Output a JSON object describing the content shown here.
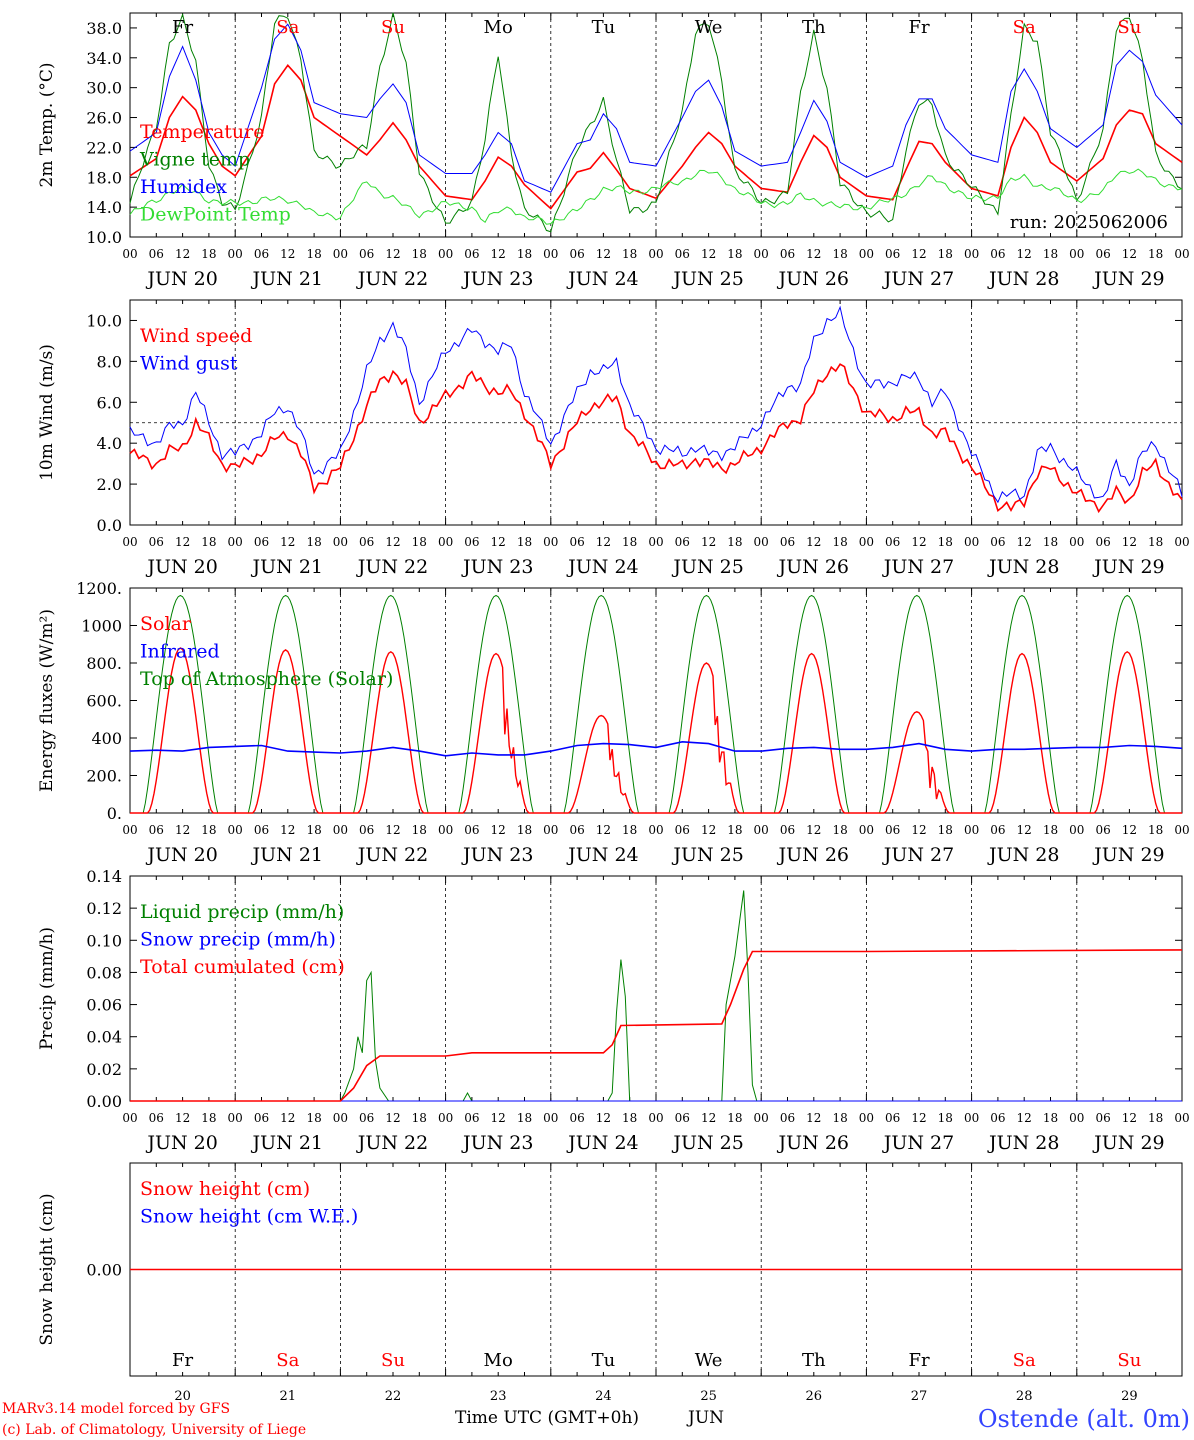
{
  "run_label": "run: 2025062006",
  "days": [
    "Fr",
    "Sa",
    "Su",
    "Mo",
    "Tu",
    "We",
    "Th",
    "Fr",
    "Sa",
    "Su"
  ],
  "day_colors": [
    "#000000",
    "#ff0000",
    "#ff0000",
    "#000000",
    "#000000",
    "#000000",
    "#000000",
    "#000000",
    "#ff0000",
    "#ff0000"
  ],
  "dates": [
    "JUN 20",
    "JUN 21",
    "JUN 22",
    "JUN 23",
    "JUN 24",
    "JUN 25",
    "JUN 26",
    "JUN 27",
    "JUN 28",
    "JUN 29"
  ],
  "date_numbers": [
    "20",
    "21",
    "22",
    "23",
    "24",
    "25",
    "26",
    "27",
    "28",
    "29"
  ],
  "hour_ticks": [
    "00",
    "06",
    "12",
    "18"
  ],
  "footer": {
    "credit1": "MARv3.14 model forced by GFS",
    "credit2": "(c) Lab. of Climatology, University of Liege",
    "xlabel": "Time UTC (GMT+0h)",
    "month": "JUN",
    "station": "Ostende (alt. 0m)"
  },
  "colors": {
    "red": "#ff0000",
    "green": "#008000",
    "blue": "#0000ff",
    "lime": "#33dd33",
    "station": "#3344ff"
  },
  "chart_data": [
    {
      "type": "line",
      "ylabel": "2m Temp. (°C)",
      "ylim": [
        10.0,
        40.0
      ],
      "yticks": [
        "10.0",
        "14.0",
        "18.0",
        "22.0",
        "26.0",
        "30.0",
        "34.0",
        "38.0"
      ],
      "x_hours": [
        0,
        6,
        9,
        12,
        15,
        18,
        21,
        24,
        30,
        33,
        36,
        39,
        42,
        48,
        54,
        57,
        60,
        63,
        66,
        72,
        78,
        81,
        84,
        87,
        90,
        96,
        102,
        105,
        108,
        111,
        114,
        120,
        126,
        129,
        132,
        135,
        138,
        144,
        150,
        153,
        156,
        159,
        162,
        168,
        174,
        177,
        180,
        183,
        186,
        192,
        198,
        201,
        204,
        207,
        210,
        216,
        222,
        225,
        228,
        231,
        234,
        240
      ],
      "series": [
        {
          "name": "Temperature",
          "color": "red",
          "values": [
            18.2,
            20.5,
            26.0,
            28.8,
            27.0,
            22.5,
            19.5,
            18.2,
            23.5,
            30.5,
            33.0,
            31.0,
            26.0,
            23.5,
            21.0,
            23.0,
            25.3,
            23.0,
            19.5,
            15.5,
            15.0,
            17.5,
            20.7,
            19.5,
            17.0,
            13.8,
            18.7,
            19.2,
            21.3,
            19.0,
            16.5,
            15.2,
            19.5,
            22.0,
            24.0,
            22.5,
            19.5,
            16.5,
            16.0,
            20.0,
            23.6,
            22.0,
            18.0,
            15.5,
            15.0,
            19.0,
            22.8,
            22.5,
            20.0,
            16.5,
            15.5,
            22.0,
            26.0,
            24.0,
            20.0,
            17.5,
            20.5,
            25.0,
            27.0,
            26.5,
            22.5,
            20.0
          ]
        },
        {
          "name": "Vigne temp",
          "color": "green",
          "values": [
            14.5,
            25.0,
            36.0,
            39.0,
            33.5,
            20.0,
            14.5,
            13.5,
            26.0,
            38.5,
            40.0,
            34.0,
            21.0,
            19.8,
            22.0,
            33.0,
            39.5,
            33.0,
            19.0,
            11.5,
            15.0,
            23.0,
            34.5,
            21.5,
            13.5,
            11.0,
            21.5,
            25.0,
            28.5,
            20.0,
            13.5,
            14.5,
            27.0,
            37.5,
            38.5,
            31.0,
            19.0,
            14.5,
            16.0,
            29.0,
            37.5,
            30.0,
            17.0,
            13.5,
            12.0,
            22.0,
            28.0,
            27.5,
            21.0,
            16.5,
            13.5,
            26.0,
            38.0,
            36.5,
            24.0,
            15.0,
            24.0,
            38.0,
            40.0,
            33.5,
            21.0,
            16.5
          ]
        },
        {
          "name": "Humidex",
          "color": "blue",
          "values": [
            21.5,
            24.0,
            31.5,
            35.5,
            31.0,
            24.0,
            21.0,
            19.5,
            30.0,
            36.5,
            38.5,
            35.0,
            28.0,
            26.5,
            26.0,
            28.5,
            30.5,
            28.0,
            21.0,
            18.5,
            18.5,
            21.0,
            24.0,
            22.5,
            17.5,
            16.0,
            22.5,
            23.0,
            26.5,
            24.5,
            20.0,
            19.5,
            26.0,
            29.5,
            31.0,
            27.5,
            21.5,
            19.5,
            20.0,
            24.0,
            28.3,
            25.5,
            20.0,
            18.0,
            19.5,
            25.0,
            28.5,
            28.5,
            24.5,
            21.0,
            20.0,
            29.5,
            32.5,
            29.5,
            24.5,
            22.0,
            25.0,
            33.0,
            35.0,
            33.5,
            29.0,
            25.0
          ]
        },
        {
          "name": "DewPoint Temp",
          "color": "lime",
          "values": [
            13.0,
            15.0,
            16.0,
            16.5,
            16.0,
            15.0,
            14.5,
            14.5,
            15.0,
            15.0,
            15.0,
            14.5,
            13.0,
            12.8,
            17.5,
            16.0,
            15.2,
            14.0,
            13.0,
            14.5,
            14.0,
            12.0,
            13.5,
            14.0,
            12.5,
            12.0,
            13.5,
            15.0,
            16.5,
            16.5,
            16.0,
            16.5,
            17.5,
            18.5,
            18.7,
            18.0,
            16.5,
            14.5,
            14.5,
            15.5,
            15.0,
            14.5,
            14.0,
            14.0,
            15.0,
            16.0,
            17.0,
            18.0,
            17.0,
            15.0,
            15.5,
            17.5,
            18.0,
            17.0,
            16.5,
            15.0,
            16.0,
            18.5,
            19.0,
            18.5,
            17.5,
            16.5
          ]
        }
      ]
    },
    {
      "type": "line",
      "ylabel": "10m Wind (m/s)",
      "ylim": [
        0.0,
        11.0
      ],
      "yticks": [
        "0.0",
        "2.0",
        "4.0",
        "6.0",
        "8.0",
        "10.0"
      ],
      "threshold": 5.0,
      "x_hours": [
        0,
        6,
        9,
        12,
        15,
        18,
        21,
        24,
        30,
        33,
        36,
        39,
        42,
        48,
        54,
        57,
        60,
        63,
        66,
        72,
        78,
        81,
        84,
        87,
        90,
        96,
        102,
        105,
        108,
        111,
        114,
        120,
        126,
        129,
        132,
        135,
        138,
        144,
        150,
        153,
        156,
        159,
        162,
        168,
        174,
        177,
        180,
        183,
        186,
        192,
        198,
        201,
        204,
        207,
        210,
        216,
        222,
        225,
        228,
        231,
        234,
        240
      ],
      "series": [
        {
          "name": "Wind speed",
          "color": "red",
          "values": [
            3.5,
            3.0,
            3.6,
            3.8,
            5.0,
            4.2,
            3.0,
            2.8,
            3.5,
            4.2,
            4.5,
            3.5,
            1.8,
            2.8,
            5.8,
            7.0,
            7.5,
            6.8,
            5.0,
            6.3,
            7.3,
            6.8,
            6.5,
            6.5,
            5.5,
            3.0,
            5.0,
            5.8,
            6.0,
            6.2,
            4.5,
            3.0,
            2.9,
            3.2,
            3.0,
            2.8,
            3.0,
            3.8,
            5.0,
            5.2,
            6.5,
            7.5,
            7.8,
            5.5,
            5.2,
            5.5,
            5.5,
            4.5,
            4.5,
            2.8,
            1.0,
            0.8,
            1.2,
            2.5,
            2.8,
            1.5,
            0.9,
            1.6,
            1.2,
            2.5,
            3.0,
            1.0
          ]
        },
        {
          "name": "Wind gust",
          "color": "blue",
          "values": [
            4.5,
            4.0,
            4.8,
            5.0,
            6.5,
            5.0,
            3.5,
            3.5,
            4.5,
            5.5,
            5.8,
            4.5,
            2.5,
            3.5,
            7.5,
            9.0,
            9.8,
            8.5,
            6.0,
            8.5,
            9.5,
            9.0,
            8.5,
            8.8,
            6.5,
            4.0,
            6.5,
            7.5,
            7.5,
            8.0,
            5.8,
            3.8,
            3.5,
            3.8,
            3.5,
            3.5,
            3.8,
            5.0,
            6.8,
            6.8,
            9.0,
            10.0,
            10.3,
            6.8,
            7.0,
            7.2,
            7.2,
            6.0,
            6.5,
            3.5,
            1.3,
            1.5,
            1.5,
            3.5,
            3.8,
            2.5,
            1.2,
            3.0,
            2.0,
            3.5,
            4.0,
            1.5
          ]
        }
      ]
    },
    {
      "type": "line",
      "ylabel": "Energy fluxes (W/m²)",
      "ylim": [
        0,
        1200
      ],
      "yticks": [
        "0.",
        "200.",
        "400",
        "600.",
        "800.",
        "1000",
        "1200."
      ],
      "series": [
        {
          "name": "Solar",
          "color": "red",
          "daily_peaks": [
            880,
            870,
            860,
            850,
            520,
            800,
            850,
            540,
            850,
            860
          ]
        },
        {
          "name": "Infrared",
          "color": "blue",
          "values": [
            330,
            335,
            330,
            350,
            355,
            360,
            330,
            325,
            320,
            330,
            350,
            330,
            305,
            320,
            310,
            310,
            330,
            360,
            370,
            365,
            350,
            380,
            370,
            330,
            330,
            345,
            350,
            340,
            340,
            350,
            370,
            340,
            330,
            340,
            340,
            345,
            350,
            350,
            360,
            355,
            345
          ]
        },
        {
          "name": "Top of Atmosphere (Solar)",
          "color": "green",
          "daily_peak": 1160
        }
      ]
    },
    {
      "type": "line",
      "ylabel": "Precip (mm/h)",
      "ylim": [
        0.0,
        0.14
      ],
      "yticks": [
        "0.00",
        "0.02",
        "0.04",
        "0.06",
        "0.08",
        "0.10",
        "0.12",
        "0.14"
      ],
      "series": [
        {
          "name": "Liquid precip (mm/h)",
          "color": "green",
          "points": [
            [
              0,
              0
            ],
            [
              48,
              0
            ],
            [
              49,
              0.005
            ],
            [
              51,
              0.02
            ],
            [
              52,
              0.04
            ],
            [
              53,
              0.03
            ],
            [
              54,
              0.075
            ],
            [
              55,
              0.08
            ],
            [
              56,
              0.025
            ],
            [
              57,
              0.008
            ],
            [
              59,
              0
            ],
            [
              76,
              0
            ],
            [
              77,
              0.005
            ],
            [
              78,
              0
            ],
            [
              109,
              0
            ],
            [
              110,
              0.005
            ],
            [
              111,
              0.055
            ],
            [
              112,
              0.088
            ],
            [
              113,
              0.065
            ],
            [
              114,
              0.0
            ],
            [
              135,
              0
            ],
            [
              136,
              0.06
            ],
            [
              138,
              0.09
            ],
            [
              140,
              0.131
            ],
            [
              141,
              0.08
            ],
            [
              142,
              0.01
            ],
            [
              143,
              0
            ],
            [
              240,
              0
            ]
          ]
        },
        {
          "name": "Snow precip (mm/h)",
          "color": "blue",
          "points": [
            [
              0,
              0
            ],
            [
              240,
              0
            ]
          ]
        },
        {
          "name": "Total cumulated (cm)",
          "color": "red",
          "points": [
            [
              0,
              0
            ],
            [
              48,
              0
            ],
            [
              51,
              0.008
            ],
            [
              54,
              0.022
            ],
            [
              57,
              0.028
            ],
            [
              72,
              0.028
            ],
            [
              78,
              0.03
            ],
            [
              108,
              0.03
            ],
            [
              110,
              0.035
            ],
            [
              112,
              0.047
            ],
            [
              135,
              0.048
            ],
            [
              137,
              0.06
            ],
            [
              140,
              0.082
            ],
            [
              142,
              0.093
            ],
            [
              168,
              0.093
            ],
            [
              240,
              0.094
            ]
          ]
        }
      ]
    },
    {
      "type": "line",
      "ylabel": "Snow height (cm)",
      "yticks": [
        "0.00"
      ],
      "series": [
        {
          "name": "Snow height (cm)",
          "color": "red",
          "values": [
            0,
            0
          ]
        },
        {
          "name": "Snow height (cm W.E.)",
          "color": "blue",
          "values": [
            0,
            0
          ]
        }
      ]
    }
  ]
}
